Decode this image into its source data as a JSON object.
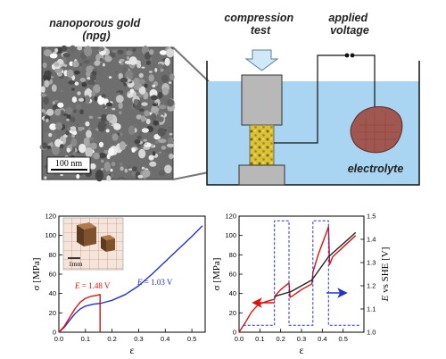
{
  "top": {
    "npg_title_1": "nanoporous gold",
    "npg_title_2": "(npg)",
    "scale_bar": "100 nm",
    "compression_1": "compression",
    "compression_2": "test",
    "voltage_1": "applied",
    "voltage_2": "voltage",
    "electrolyte": "electrolyte"
  },
  "chart_data": [
    {
      "type": "line",
      "ylabel": "σ [MPa]",
      "xlabel": "ε",
      "xlim": [
        0.0,
        0.55
      ],
      "ylim": [
        0,
        120
      ],
      "x_ticks": [
        "0.0",
        "0.1",
        "0.2",
        "0.3",
        "0.4",
        "0.5"
      ],
      "y_ticks": [
        "0",
        "20",
        "40",
        "60",
        "80",
        "100",
        "120"
      ],
      "inset_scale": "1mm",
      "series": [
        {
          "name": "E = 1.03 V",
          "color": "#2233cc",
          "x": [
            0.0,
            0.02,
            0.04,
            0.06,
            0.08,
            0.1,
            0.13,
            0.16,
            0.2,
            0.25,
            0.3,
            0.35,
            0.4,
            0.45,
            0.5,
            0.54
          ],
          "y": [
            0,
            5,
            12,
            19,
            24,
            27,
            29,
            30,
            33,
            39,
            48,
            60,
            73,
            86,
            99,
            110
          ]
        },
        {
          "name": "E = 1.48 V",
          "color": "#dd1111",
          "x": [
            0.0,
            0.02,
            0.04,
            0.06,
            0.08,
            0.1,
            0.12,
            0.14,
            0.155,
            0.155
          ],
          "y": [
            0,
            6,
            15,
            24,
            31,
            35,
            37,
            38,
            39,
            0
          ]
        }
      ],
      "annotations": {
        "red_E": "E",
        "red_val": " = 1.48 V",
        "blue_E": "E",
        "blue_val": " = 1.03 V"
      }
    },
    {
      "type": "line",
      "ylabel": "σ [MPa]",
      "xlabel": "ε",
      "y2label_E": "E",
      "y2label_rest": " vs SHE [V]",
      "xlim": [
        0.0,
        0.6
      ],
      "ylim": [
        0,
        120
      ],
      "y2lim": [
        1.0,
        1.5
      ],
      "x_ticks": [
        "0.0",
        "0.1",
        "0.2",
        "0.3",
        "0.4",
        "0.5"
      ],
      "y_ticks": [
        "0",
        "20",
        "40",
        "60",
        "80",
        "100",
        "120"
      ],
      "y2_ticks": [
        "1.0",
        "1.1",
        "1.2",
        "1.3",
        "1.4",
        "1.5"
      ],
      "series": [
        {
          "color": "#dd1111",
          "x": [
            0.0,
            0.03,
            0.06,
            0.09,
            0.12,
            0.15,
            0.17,
            0.175,
            0.2,
            0.24,
            0.245,
            0.26,
            0.3,
            0.35,
            0.355,
            0.38,
            0.42,
            0.43,
            0.435,
            0.45,
            0.5,
            0.56
          ],
          "y": [
            0,
            10,
            21,
            28,
            31,
            33,
            34,
            38,
            44,
            51,
            36,
            38,
            44,
            50,
            62,
            80,
            103,
            109,
            70,
            78,
            88,
            100
          ]
        },
        {
          "color": "#222222",
          "x": [
            0.17,
            0.25,
            0.35,
            0.43,
            0.56
          ],
          "y": [
            37,
            42,
            54,
            78,
            103
          ]
        },
        {
          "color": "#2233cc",
          "dashed": true,
          "x": [
            0.02,
            0.17,
            0.17,
            0.24,
            0.24,
            0.355,
            0.355,
            0.43,
            0.43,
            0.58
          ],
          "y2": [
            1.03,
            1.03,
            1.48,
            1.48,
            1.03,
            1.03,
            1.48,
            1.48,
            1.03,
            1.03
          ]
        }
      ]
    }
  ]
}
